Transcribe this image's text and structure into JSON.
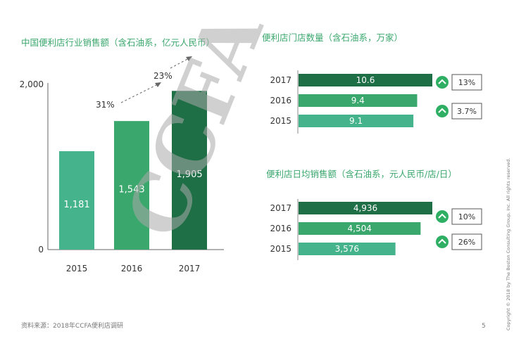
{
  "colors": {
    "dark": "#1e6e46",
    "mid": "#3aa76d",
    "light": "#45b38c",
    "title": "#3aa76d",
    "text": "#333333",
    "badge": "#2faf64"
  },
  "footer": {
    "source": "资料来源：2018年CCFA便利店调研",
    "page": "5"
  },
  "side_note": "Copyright © 2018 by The Boston Consulting Group, Inc. All rights reserved.",
  "watermark": "CCFA",
  "chart_data": [
    {
      "type": "bar",
      "title": "中国便利店行业销售额（含石油系，亿元人民币）",
      "categories": [
        "2015",
        "2016",
        "2017"
      ],
      "values": [
        1181,
        1543,
        1905
      ],
      "value_labels": [
        "1,181",
        "1,543",
        "1,905"
      ],
      "ylim": [
        0,
        2000
      ],
      "yticks": [
        "0",
        "2,000"
      ],
      "growth": [
        "31%",
        "23%"
      ]
    },
    {
      "type": "bar",
      "orientation": "horizontal",
      "title": "便利店门店数量（含石油系，万家）",
      "categories": [
        "2017",
        "2016",
        "2015"
      ],
      "values": [
        10.6,
        9.4,
        9.1
      ],
      "value_labels": [
        "10.6",
        "9.4",
        "9.1"
      ],
      "growth": [
        "13%",
        "3.7%"
      ]
    },
    {
      "type": "bar",
      "orientation": "horizontal",
      "title": "便利店日均销售额（含石油系，元人民币/店/日）",
      "categories": [
        "2017",
        "2016",
        "2015"
      ],
      "values": [
        4936,
        4504,
        3576
      ],
      "value_labels": [
        "4,936",
        "4,504",
        "3,576"
      ],
      "growth": [
        "10%",
        "26%"
      ]
    }
  ]
}
